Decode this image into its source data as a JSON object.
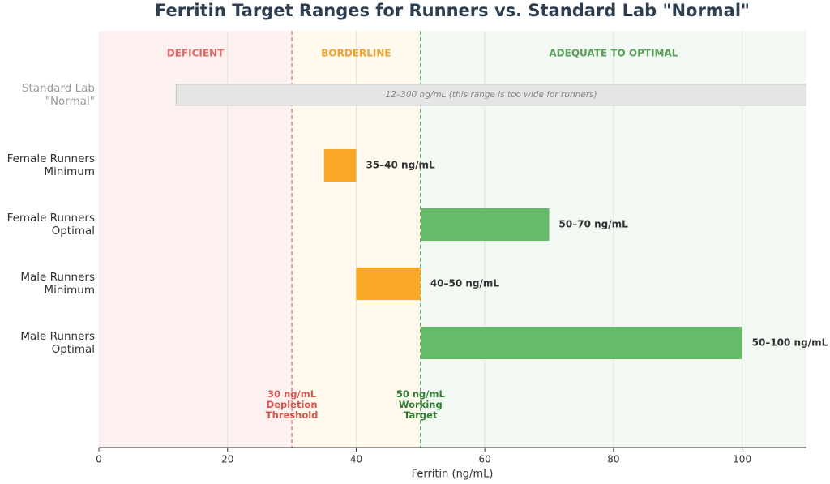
{
  "chart_data": {
    "type": "range-bar",
    "title": "Ferritin Target Ranges for Runners vs. Standard Lab \"Normal\"",
    "x_label": "Ferritin (ng/mL)",
    "xlim": [
      0,
      110
    ],
    "xticks": [
      0,
      20,
      40,
      60,
      80,
      100
    ],
    "grid": true,
    "categories": [
      "Standard Lab\n\"Normal\"",
      "Female Runners\nMinimum",
      "Female Runners\nOptimal",
      "Male Runners\nMinimum",
      "Male Runners\nOptimal"
    ],
    "category_colors": [
      "#999999",
      "#333333",
      "#333333",
      "#333333",
      "#333333"
    ],
    "starts": [
      12,
      35,
      50,
      40,
      50
    ],
    "ends": [
      300,
      40,
      70,
      50,
      100
    ],
    "colors": [
      "#e4e6e4",
      "#f9a825",
      "#66bb6a",
      "#f9a825",
      "#66bb6a"
    ],
    "value_labels": [
      "12–300 ng/mL  (this range is too wide for runners)",
      "35–40 ng/mL",
      "50–70 ng/mL",
      "40–50 ng/mL",
      "50–100 ng/mL"
    ],
    "bands": [
      {
        "label": "DEFICIENT",
        "from": 0,
        "to": 30,
        "color": "#fdf1f0",
        "label_color": "#e06666"
      },
      {
        "label": "BORDERLINE",
        "from": 30,
        "to": 50,
        "color": "#fffaed",
        "label_color": "#f0a030"
      },
      {
        "label": "ADEQUATE TO OPTIMAL",
        "from": 50,
        "to": 110,
        "color": "#f2f9f3",
        "label_color": "#5a9e5a"
      }
    ],
    "reference_lines": [
      {
        "value": 30,
        "label": "30 ng/mL\nDepletion\nThreshold",
        "color": "#d9534f"
      },
      {
        "value": 50,
        "label": "50 ng/mL\nWorking\nTarget",
        "color": "#2e7d32"
      }
    ]
  }
}
